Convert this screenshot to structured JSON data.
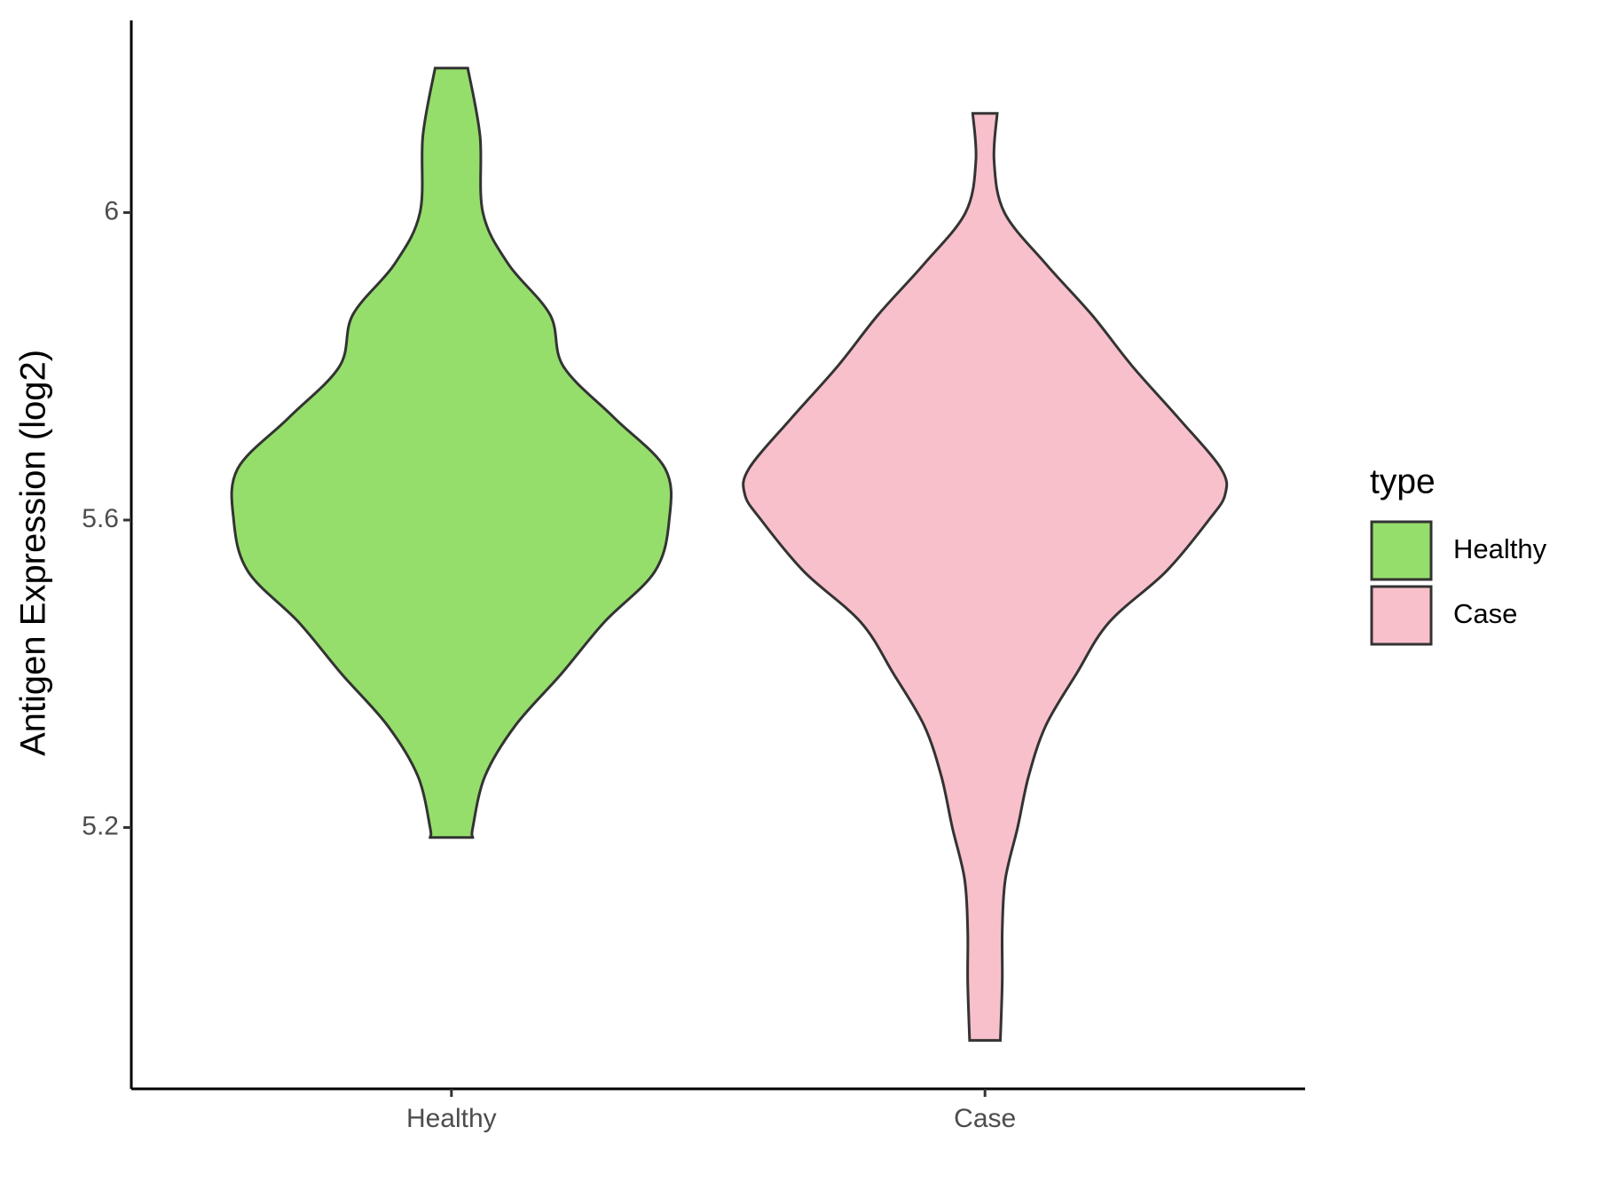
{
  "chart_data": {
    "type": "violin",
    "y_label": "Antigen Expression (log2)",
    "categories": [
      "Healthy",
      "Case"
    ],
    "legend_title": "type",
    "legend": "right",
    "ylim": [
      4.86,
      6.25
    ],
    "yticks": [
      5.2,
      5.6,
      6.0
    ],
    "series": [
      {
        "name": "Healthy",
        "color": "#95de6b",
        "y": [
          5.187,
          5.2,
          5.267,
          5.333,
          5.4,
          5.467,
          5.533,
          5.6,
          5.667,
          5.733,
          5.8,
          5.867,
          5.933,
          6.0,
          6.1,
          6.188
        ],
        "density": [
          0.089,
          0.089,
          0.14,
          0.267,
          0.458,
          0.636,
          0.847,
          0.907,
          0.89,
          0.678,
          0.466,
          0.411,
          0.237,
          0.131,
          0.119,
          0.068
        ]
      },
      {
        "name": "Case",
        "color": "#f8c0cb",
        "y": [
          4.923,
          5.0,
          5.067,
          5.133,
          5.2,
          5.267,
          5.333,
          5.4,
          5.467,
          5.533,
          5.6,
          5.633,
          5.667,
          5.733,
          5.8,
          5.867,
          5.933,
          6.0,
          6.067,
          6.129
        ],
        "density": [
          0.064,
          0.072,
          0.072,
          0.085,
          0.136,
          0.182,
          0.254,
          0.381,
          0.517,
          0.754,
          0.932,
          1,
          0.983,
          0.805,
          0.614,
          0.445,
          0.254,
          0.081,
          0.038,
          0.051
        ]
      }
    ]
  }
}
